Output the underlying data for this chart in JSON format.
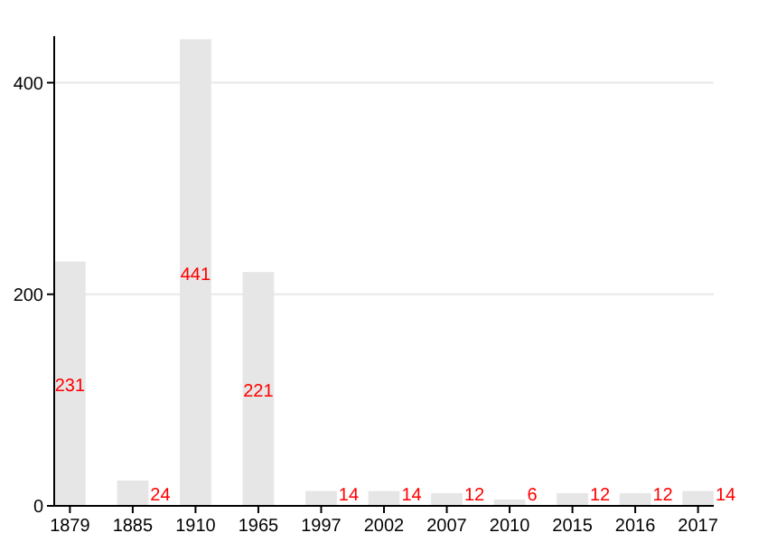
{
  "chart_data": {
    "type": "bar",
    "categories": [
      "1879",
      "1885",
      "1910",
      "1965",
      "1997",
      "2002",
      "2007",
      "2010",
      "2015",
      "2016",
      "2017"
    ],
    "values": [
      231,
      24,
      441,
      221,
      14,
      14,
      12,
      6,
      12,
      12,
      14
    ],
    "color": "#e6e6e6",
    "ylim": [
      0,
      444
    ],
    "yticks": [
      0,
      200,
      400
    ],
    "grid": "y",
    "data_labels": true
  }
}
